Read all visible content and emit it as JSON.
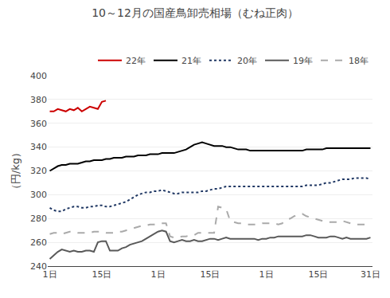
{
  "chart_data": {
    "type": "line",
    "title": "10～12月の国産鳥卸売相場（むね正肉）",
    "ylabel": "（円/kg）",
    "categories": [
      "1日",
      null,
      null,
      null,
      null,
      null,
      null,
      null,
      null,
      null,
      null,
      null,
      null,
      "15日",
      null,
      null,
      null,
      null,
      null,
      null,
      null,
      null,
      null,
      null,
      null,
      null,
      null,
      "1日",
      null,
      null,
      null,
      null,
      null,
      null,
      null,
      null,
      null,
      null,
      null,
      null,
      "15日",
      null,
      null,
      null,
      null,
      null,
      null,
      null,
      null,
      null,
      null,
      null,
      null,
      null,
      "1日",
      null,
      null,
      null,
      null,
      null,
      null,
      null,
      null,
      null,
      null,
      null,
      null,
      "15日",
      null,
      null,
      null,
      null,
      null,
      null,
      null,
      null,
      null,
      null,
      null,
      null,
      "31日"
    ],
    "ylim": [
      240,
      400
    ],
    "yticks": [
      240,
      260,
      280,
      300,
      320,
      340,
      360,
      380,
      400
    ],
    "grid": "y",
    "legend": "upper right",
    "series": [
      {
        "name": "22年",
        "color": "#cc0000",
        "line_style": "solid",
        "values": [
          370,
          370,
          372,
          371,
          370,
          372,
          371,
          373,
          370,
          372,
          374,
          373,
          372,
          378,
          379,
          null,
          null,
          null,
          null,
          null,
          null,
          null,
          null,
          null,
          null,
          null,
          null,
          null,
          null,
          null,
          null,
          null,
          null,
          null,
          null,
          null,
          null,
          null,
          null,
          null,
          null,
          null,
          null,
          null,
          null,
          null,
          null,
          null,
          null,
          null,
          null,
          null,
          null,
          null,
          null,
          null,
          null,
          null,
          null,
          null,
          null,
          null,
          null,
          null,
          null,
          null,
          null,
          null,
          null,
          null,
          null,
          null,
          null,
          null,
          null,
          null,
          null,
          null,
          null,
          null,
          null
        ]
      },
      {
        "name": "21年",
        "color": "#000000",
        "line_style": "solid",
        "values": [
          320,
          322,
          324,
          325,
          325,
          326,
          326,
          326,
          327,
          328,
          328,
          329,
          329,
          329,
          330,
          330,
          331,
          331,
          331,
          332,
          332,
          332,
          333,
          333,
          333,
          334,
          334,
          334,
          335,
          335,
          335,
          335,
          336,
          337,
          338,
          340,
          342,
          343,
          344,
          343,
          342,
          341,
          341,
          341,
          340,
          340,
          339,
          338,
          338,
          338,
          337,
          337,
          337,
          337,
          337,
          337,
          337,
          337,
          337,
          337,
          337,
          337,
          337,
          337,
          338,
          338,
          338,
          338,
          338,
          339,
          339,
          339,
          339,
          339,
          339,
          339,
          339,
          339,
          339,
          339,
          339
        ]
      },
      {
        "name": "20年",
        "color": "#203864",
        "line_style": "dotted",
        "values": [
          289,
          287,
          286,
          286,
          288,
          289,
          290,
          290,
          289,
          289,
          290,
          290,
          291,
          291,
          290,
          290,
          291,
          292,
          293,
          294,
          296,
          298,
          300,
          301,
          302,
          302,
          303,
          303,
          304,
          303,
          302,
          301,
          301,
          302,
          302,
          302,
          302,
          302,
          303,
          303,
          304,
          305,
          305,
          306,
          307,
          307,
          307,
          307,
          307,
          307,
          307,
          307,
          307,
          307,
          307,
          307,
          307,
          307,
          307,
          307,
          307,
          307,
          307,
          307,
          308,
          308,
          308,
          308,
          309,
          310,
          310,
          311,
          312,
          313,
          313,
          313,
          314,
          314,
          314,
          314,
          313
        ]
      },
      {
        "name": "19年",
        "color": "#595959",
        "line_style": "solid",
        "values": [
          246,
          249,
          252,
          254,
          253,
          252,
          253,
          252,
          252,
          253,
          253,
          252,
          260,
          261,
          261,
          253,
          253,
          253,
          255,
          256,
          258,
          259,
          260,
          261,
          263,
          265,
          267,
          269,
          270,
          269,
          261,
          260,
          261,
          262,
          261,
          261,
          262,
          261,
          261,
          262,
          263,
          263,
          262,
          263,
          264,
          263,
          263,
          263,
          263,
          263,
          263,
          263,
          262,
          263,
          263,
          264,
          264,
          265,
          265,
          265,
          265,
          265,
          265,
          265,
          266,
          266,
          265,
          264,
          264,
          264,
          265,
          265,
          264,
          263,
          264,
          263,
          263,
          263,
          263,
          263,
          264
        ]
      },
      {
        "name": "18年",
        "color": "#aaaaaa",
        "line_style": "dashed",
        "values": [
          267,
          268,
          268,
          267,
          268,
          269,
          269,
          268,
          268,
          268,
          268,
          269,
          269,
          269,
          268,
          268,
          268,
          269,
          269,
          270,
          271,
          272,
          273,
          274,
          274,
          275,
          275,
          276,
          276,
          276,
          265,
          264,
          264,
          265,
          265,
          266,
          266,
          268,
          268,
          268,
          268,
          268,
          290,
          289,
          288,
          278,
          277,
          276,
          276,
          275,
          275,
          275,
          275,
          276,
          276,
          276,
          276,
          275,
          276,
          279,
          280,
          282,
          283,
          284,
          282,
          281,
          280,
          279,
          278,
          277,
          277,
          277,
          277,
          278,
          277,
          276,
          275,
          275,
          275,
          275,
          276
        ]
      }
    ]
  }
}
